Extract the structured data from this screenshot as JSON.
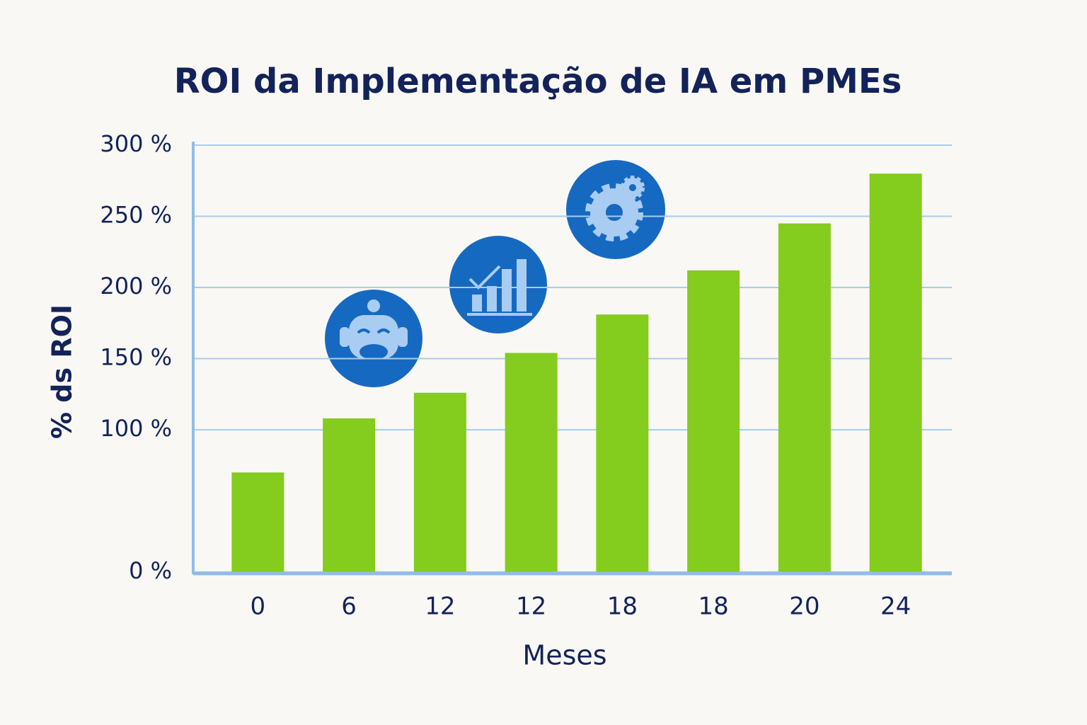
{
  "chart_data": {
    "type": "bar",
    "title": "ROI da Implementação de IA em PMEs",
    "x_label": "Meses",
    "y_label": "% ds ROI",
    "categories": [
      "0",
      "6",
      "12",
      "12",
      "18",
      "18",
      "20",
      "24"
    ],
    "values": [
      70,
      108,
      126,
      154,
      181,
      212,
      245,
      280
    ],
    "color": "#84cc1e",
    "ylim": [
      0,
      300
    ],
    "yticks": [
      {
        "value": 0,
        "label": "0 %"
      },
      {
        "value": 100,
        "label": "100 %"
      },
      {
        "value": 150,
        "label": "150 %"
      },
      {
        "value": 200,
        "label": "200 %"
      },
      {
        "value": 250,
        "label": "250 %"
      },
      {
        "value": 300,
        "label": "300 %"
      }
    ],
    "grid": true
  }
}
